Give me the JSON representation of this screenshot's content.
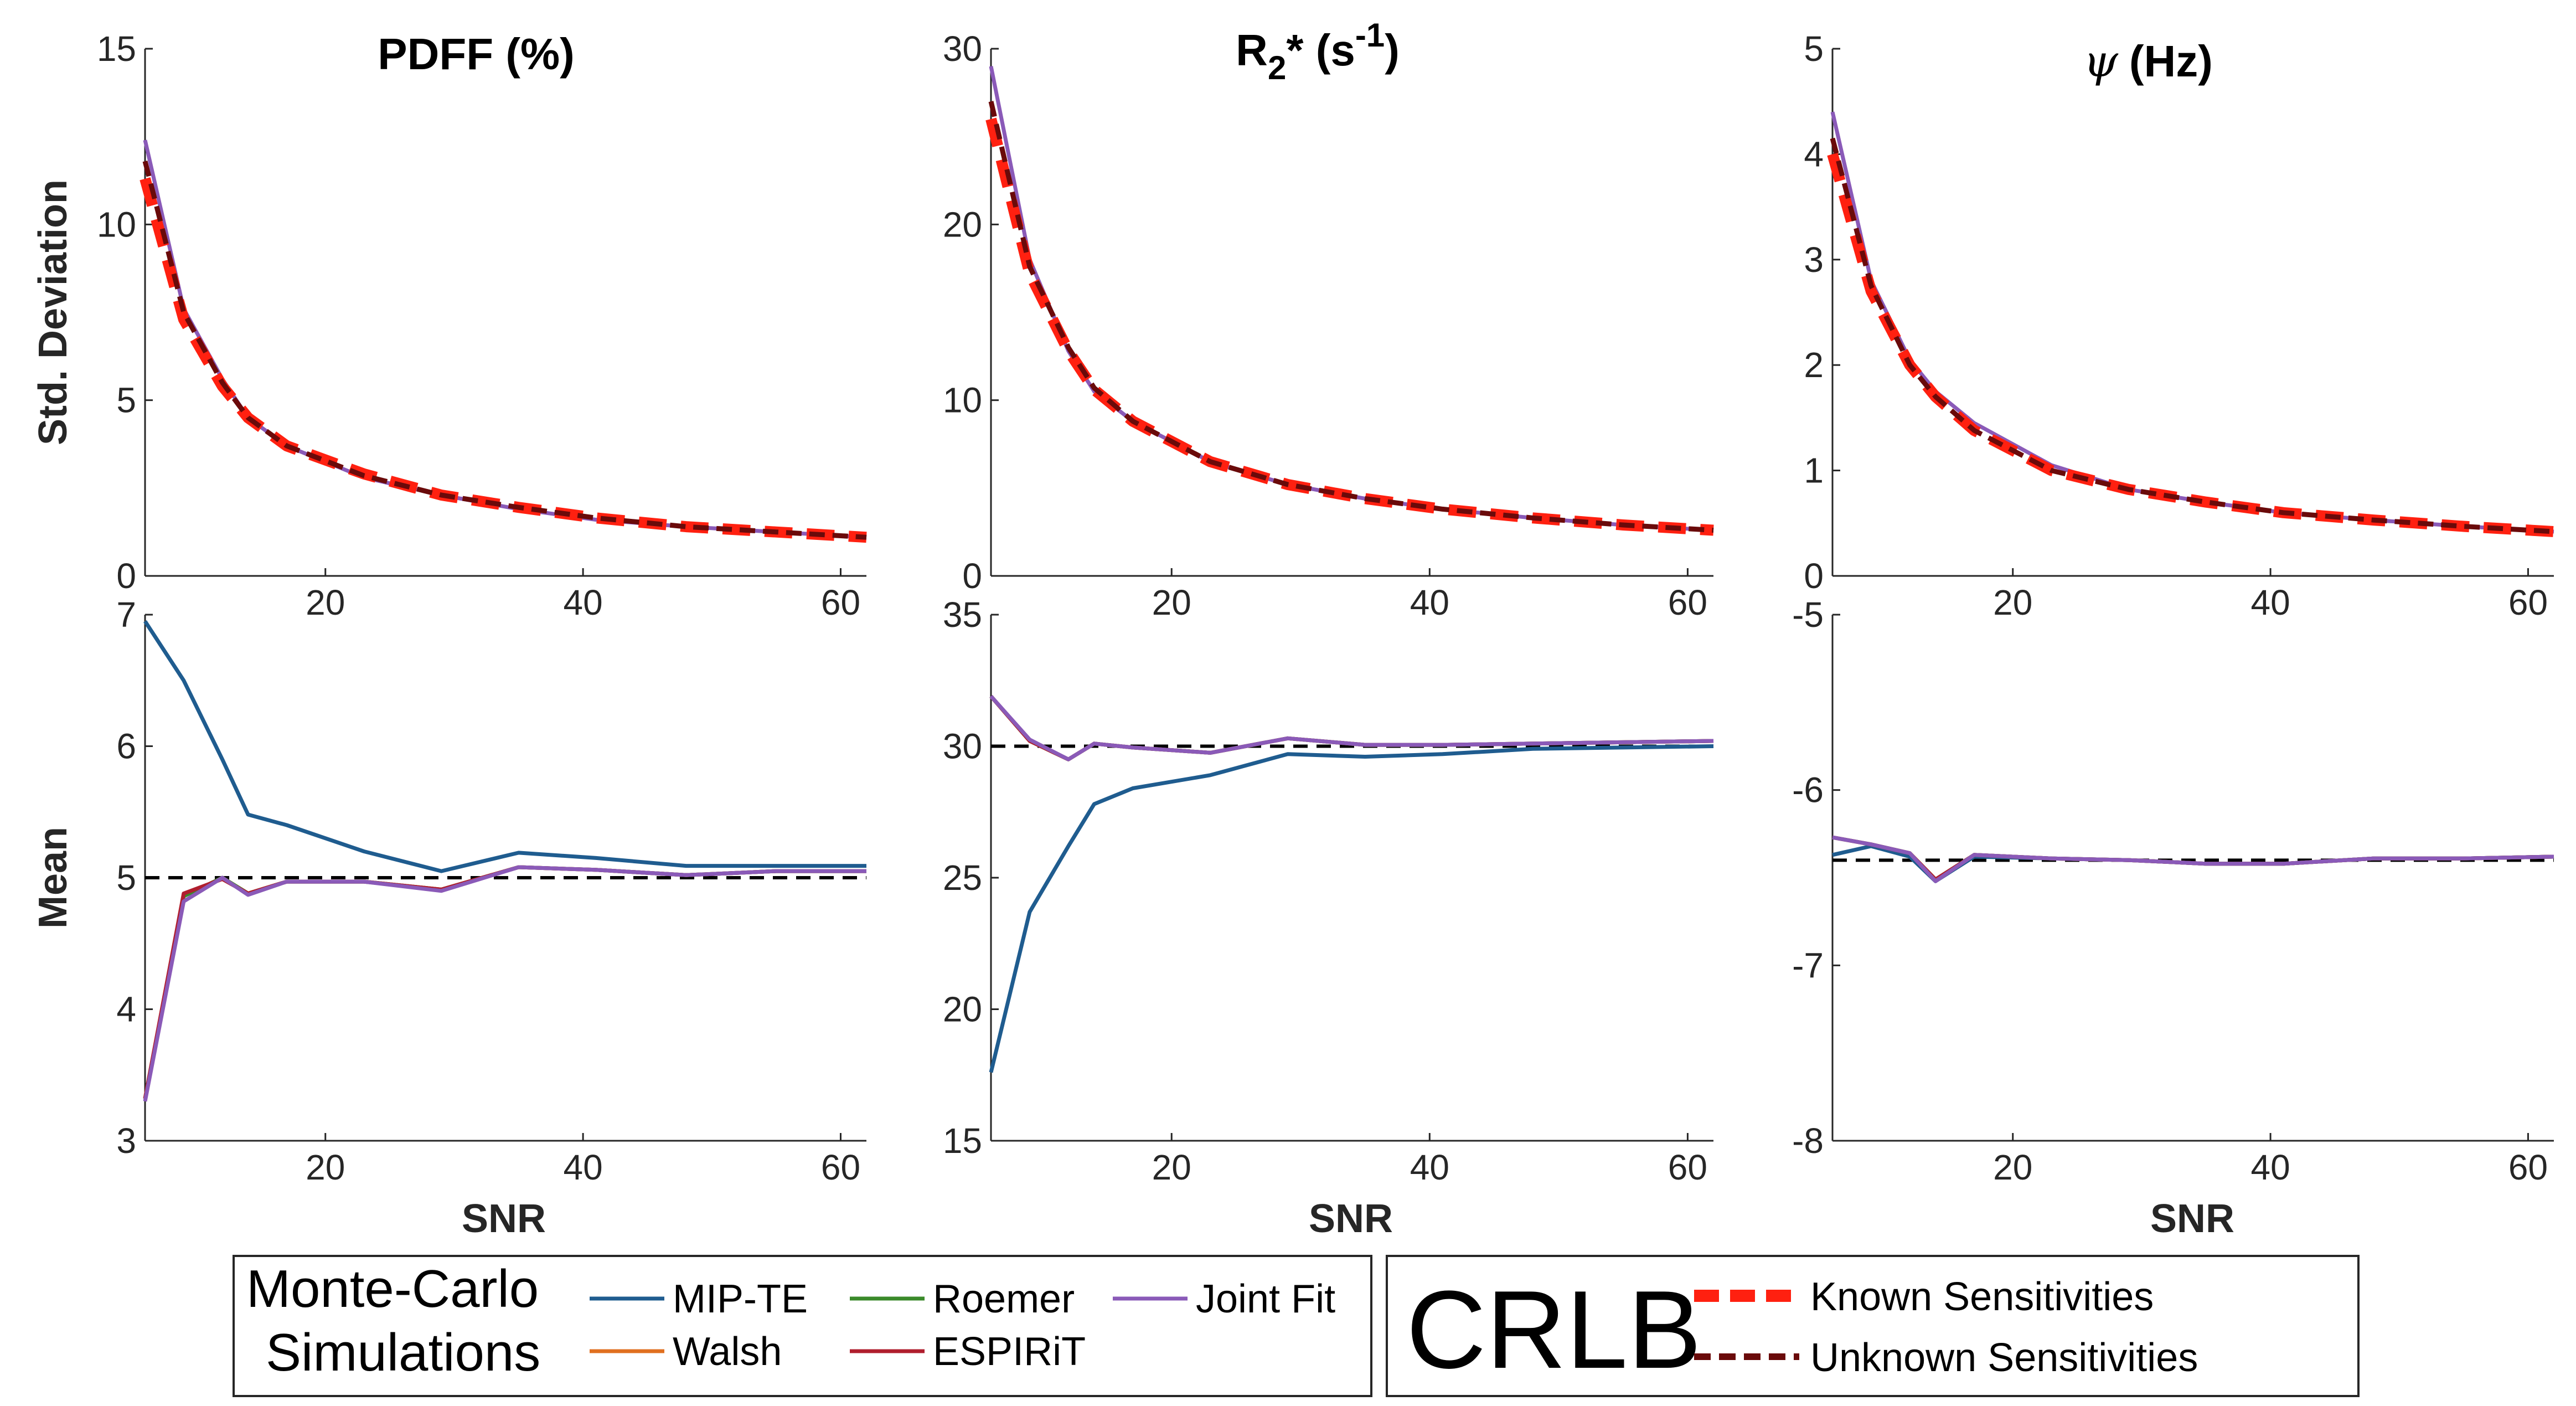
{
  "chart_data": {
    "type": "line",
    "x_label": "SNR",
    "x_ticks": [
      20,
      40,
      60
    ],
    "x_range": [
      6,
      62
    ],
    "colors": {
      "MIP-TE": "#1f5c8f",
      "Walsh": "#e07020",
      "Roemer": "#3a8a2a",
      "ESPIRiT": "#b01e2e",
      "Joint Fit": "#8a5ab8",
      "Known Sensitivities": "#ff2010",
      "Unknown Sensitivities": "#6a0a0a",
      "reference": "#000000"
    },
    "columns": [
      {
        "title": "PDFF (%)",
        "title_parts": {
          "main": "PDFF (%)"
        }
      },
      {
        "title": "R2* (s-1)",
        "title_parts": {
          "r": "R",
          "sub": "2",
          "star": "* (s",
          "sup": "-1",
          "close": ")"
        }
      },
      {
        "title": "ψ (Hz)",
        "title_parts": {
          "psi": "ψ",
          "rest": "(Hz)"
        }
      }
    ],
    "panels": [
      {
        "id": "pdff-std",
        "ylabel": "Std. Deviation",
        "ylim": [
          0,
          15
        ],
        "yticks": [
          0,
          5,
          10,
          15
        ],
        "x": [
          6,
          9,
          12,
          14,
          17,
          23,
          29,
          35,
          41,
          48,
          55,
          62
        ],
        "series": [
          {
            "name": "Joint Fit",
            "values": [
              12.4,
              7.6,
              5.6,
              4.5,
              3.7,
              2.8,
              2.3,
              1.9,
              1.6,
              1.4,
              1.25,
              1.1
            ]
          },
          {
            "name": "Known Sensitivities",
            "values": [
              11.3,
              7.3,
              5.4,
              4.5,
              3.7,
              2.9,
              2.3,
              1.95,
              1.65,
              1.4,
              1.25,
              1.1
            ]
          },
          {
            "name": "Unknown Sensitivities",
            "values": [
              11.8,
              7.5,
              5.5,
              4.5,
              3.7,
              2.85,
              2.3,
              1.95,
              1.65,
              1.4,
              1.25,
              1.1
            ]
          }
        ]
      },
      {
        "id": "r2-std",
        "ylabel": "",
        "ylim": [
          0,
          30
        ],
        "yticks": [
          0,
          10,
          20,
          30
        ],
        "x": [
          6,
          9,
          12,
          14,
          17,
          23,
          29,
          35,
          41,
          48,
          55,
          62
        ],
        "series": [
          {
            "name": "Joint Fit",
            "values": [
              29.0,
              18.0,
              12.8,
              10.5,
              8.8,
              6.5,
              5.2,
              4.4,
              3.8,
              3.3,
              2.9,
              2.6
            ]
          },
          {
            "name": "Known Sensitivities",
            "values": [
              26.0,
              17.2,
              12.8,
              10.6,
              8.8,
              6.5,
              5.2,
              4.4,
              3.8,
              3.3,
              2.9,
              2.6
            ]
          },
          {
            "name": "Unknown Sensitivities",
            "values": [
              27.0,
              17.6,
              13.0,
              10.7,
              8.8,
              6.5,
              5.2,
              4.4,
              3.8,
              3.3,
              2.9,
              2.6
            ]
          }
        ]
      },
      {
        "id": "psi-std",
        "ylabel": "",
        "ylim": [
          0,
          5
        ],
        "yticks": [
          0,
          1,
          2,
          3,
          4,
          5
        ],
        "x": [
          6,
          9,
          12,
          14,
          17,
          23,
          29,
          35,
          41,
          48,
          55,
          62
        ],
        "series": [
          {
            "name": "Joint Fit",
            "values": [
              4.4,
              2.8,
              2.05,
              1.75,
              1.45,
              1.05,
              0.82,
              0.7,
              0.6,
              0.53,
              0.47,
              0.42
            ]
          },
          {
            "name": "Known Sensitivities",
            "values": [
              4.0,
              2.7,
              2.0,
              1.7,
              1.38,
              1.0,
              0.82,
              0.7,
              0.6,
              0.53,
              0.47,
              0.42
            ]
          },
          {
            "name": "Unknown Sensitivities",
            "values": [
              4.15,
              2.75,
              2.0,
              1.7,
              1.38,
              1.0,
              0.82,
              0.7,
              0.6,
              0.53,
              0.47,
              0.42
            ]
          }
        ]
      },
      {
        "id": "pdff-mean",
        "ylabel": "Mean",
        "ylim": [
          3,
          7
        ],
        "yticks": [
          3,
          4,
          5,
          6,
          7
        ],
        "reference": 5.0,
        "x": [
          6,
          9,
          12,
          14,
          17,
          23,
          29,
          35,
          41,
          48,
          55,
          62
        ],
        "series": [
          {
            "name": "MIP-TE",
            "values": [
              6.95,
              6.5,
              5.9,
              5.48,
              5.4,
              5.2,
              5.05,
              5.19,
              5.15,
              5.09,
              5.09,
              5.09
            ]
          },
          {
            "name": "Walsh",
            "values": [
              3.32,
              4.86,
              5.0,
              4.88,
              4.97,
              4.97,
              4.91,
              5.08,
              5.06,
              5.02,
              5.05,
              5.05
            ]
          },
          {
            "name": "Roemer",
            "values": [
              3.32,
              4.86,
              5.0,
              4.88,
              4.97,
              4.97,
              4.91,
              5.08,
              5.06,
              5.02,
              5.05,
              5.05
            ]
          },
          {
            "name": "ESPIRiT",
            "values": [
              3.32,
              4.88,
              4.99,
              4.88,
              4.97,
              4.97,
              4.91,
              5.08,
              5.06,
              5.02,
              5.05,
              5.05
            ]
          },
          {
            "name": "Joint Fit",
            "values": [
              3.3,
              4.82,
              5.0,
              4.87,
              4.97,
              4.97,
              4.9,
              5.08,
              5.06,
              5.02,
              5.05,
              5.05
            ]
          }
        ]
      },
      {
        "id": "r2-mean",
        "ylabel": "",
        "ylim": [
          15,
          35
        ],
        "yticks": [
          15,
          20,
          25,
          30,
          35
        ],
        "reference": 30.0,
        "x": [
          6,
          9,
          12,
          14,
          17,
          23,
          29,
          35,
          41,
          48,
          55,
          62
        ],
        "series": [
          {
            "name": "MIP-TE",
            "values": [
              17.6,
              23.7,
              26.2,
              27.8,
              28.4,
              28.9,
              29.7,
              29.6,
              29.7,
              29.9,
              29.95,
              30.0
            ]
          },
          {
            "name": "Walsh",
            "values": [
              31.9,
              30.2,
              29.5,
              30.1,
              29.95,
              29.75,
              30.3,
              30.05,
              30.05,
              30.1,
              30.15,
              30.2
            ]
          },
          {
            "name": "Roemer",
            "values": [
              31.9,
              30.2,
              29.5,
              30.1,
              29.95,
              29.75,
              30.3,
              30.05,
              30.05,
              30.1,
              30.15,
              30.2
            ]
          },
          {
            "name": "ESPIRiT",
            "values": [
              31.9,
              30.2,
              29.5,
              30.1,
              29.95,
              29.75,
              30.3,
              30.05,
              30.05,
              30.1,
              30.15,
              30.2
            ]
          },
          {
            "name": "Joint Fit",
            "values": [
              31.9,
              30.25,
              29.5,
              30.1,
              29.95,
              29.75,
              30.3,
              30.05,
              30.05,
              30.1,
              30.15,
              30.2
            ]
          }
        ]
      },
      {
        "id": "psi-mean",
        "ylabel": "",
        "ylim": [
          -8,
          -5
        ],
        "yticks": [
          -8,
          -7,
          -6,
          -5
        ],
        "reference": -6.4,
        "x": [
          6,
          9,
          12,
          14,
          17,
          23,
          29,
          35,
          41,
          48,
          55,
          62
        ],
        "series": [
          {
            "name": "MIP-TE",
            "values": [
              -6.37,
              -6.32,
              -6.38,
              -6.52,
              -6.38,
              -6.39,
              -6.4,
              -6.42,
              -6.42,
              -6.39,
              -6.39,
              -6.38
            ]
          },
          {
            "name": "Walsh",
            "values": [
              -6.27,
              -6.31,
              -6.36,
              -6.51,
              -6.37,
              -6.39,
              -6.4,
              -6.42,
              -6.42,
              -6.39,
              -6.39,
              -6.38
            ]
          },
          {
            "name": "Roemer",
            "values": [
              -6.27,
              -6.31,
              -6.36,
              -6.51,
              -6.37,
              -6.39,
              -6.4,
              -6.42,
              -6.42,
              -6.39,
              -6.39,
              -6.38
            ]
          },
          {
            "name": "ESPIRiT",
            "values": [
              -6.27,
              -6.31,
              -6.36,
              -6.51,
              -6.37,
              -6.39,
              -6.4,
              -6.42,
              -6.42,
              -6.39,
              -6.39,
              -6.38
            ]
          },
          {
            "name": "Joint Fit",
            "values": [
              -6.27,
              -6.31,
              -6.36,
              -6.52,
              -6.37,
              -6.39,
              -6.4,
              -6.42,
              -6.42,
              -6.39,
              -6.39,
              -6.38
            ]
          }
        ]
      }
    ],
    "legend_left": {
      "title_line1": "Monte-Carlo",
      "title_line2": "Simulations",
      "entries": [
        "MIP-TE",
        "Roemer",
        "Joint Fit",
        "Walsh",
        "ESPIRiT"
      ]
    },
    "legend_right": {
      "title": "CRLB",
      "entries": [
        "Known Sensitivities",
        "Unknown Sensitivities"
      ]
    }
  }
}
